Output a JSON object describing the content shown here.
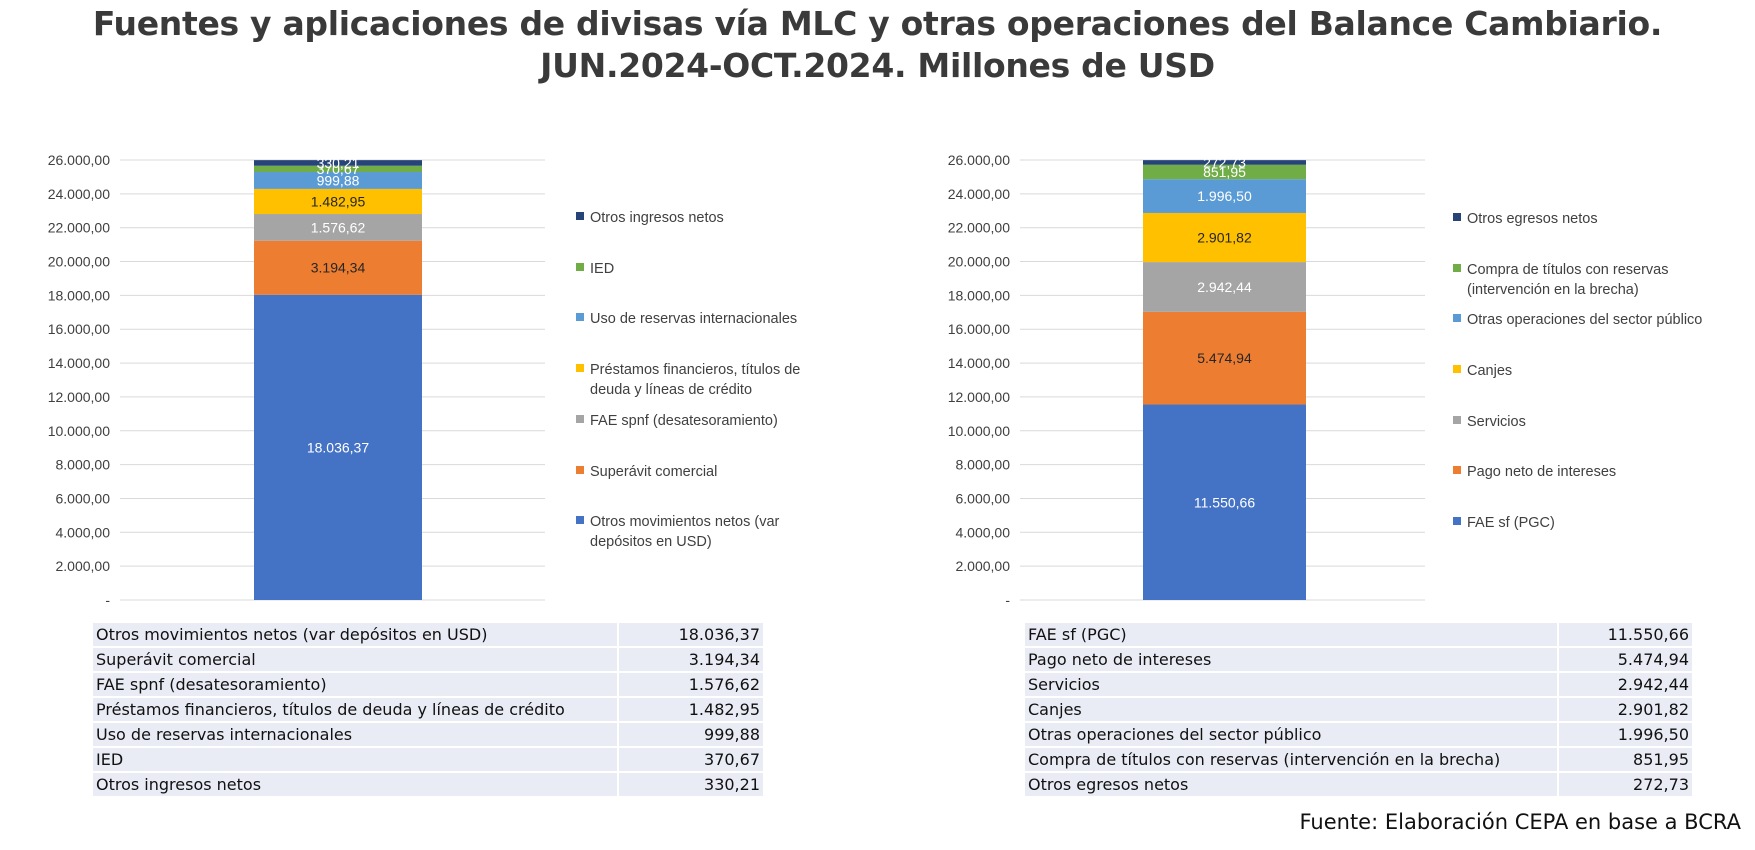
{
  "title": {
    "line1": "Fuentes y aplicaciones de divisas vía MLC y otras operaciones del Balance Cambiario.",
    "line2": "JUN.2024-OCT.2024. Millones de USD"
  },
  "source": "Fuente: Elaboración CEPA en base a BCRA",
  "chart_data": [
    {
      "type": "bar",
      "stacked": true,
      "ylim": [
        0,
        26000
      ],
      "y_ticks": [
        "-",
        "2.000,00",
        "4.000,00",
        "6.000,00",
        "8.000,00",
        "10.000,00",
        "12.000,00",
        "14.000,00",
        "16.000,00",
        "18.000,00",
        "20.000,00",
        "22.000,00",
        "24.000,00",
        "26.000,00"
      ],
      "grid": true,
      "legend_position": "right",
      "series": [
        {
          "name": "Otros movimientos netos (var depósitos en USD)",
          "value": 18036.37,
          "label": "18.036,37",
          "color": "#4472c4"
        },
        {
          "name": "Superávit comercial",
          "value": 3194.34,
          "label": "3.194,34",
          "color": "#ed7d31"
        },
        {
          "name": "FAE spnf (desatesoramiento)",
          "value": 1576.62,
          "label": "1.576,62",
          "color": "#a5a5a5"
        },
        {
          "name": "Préstamos financieros, títulos de deuda y líneas de crédito",
          "value": 1482.95,
          "label": "1.482,95",
          "color": "#ffc000"
        },
        {
          "name": "Uso de reservas internacionales",
          "value": 999.88,
          "label": "999,88",
          "color": "#5b9bd5"
        },
        {
          "name": "IED",
          "value": 370.67,
          "label": "370,67",
          "color": "#70ad47"
        },
        {
          "name": "Otros ingresos netos",
          "value": 330.21,
          "label": "330,21",
          "color": "#264478"
        }
      ],
      "legend": [
        {
          "lines": [
            "Otros ingresos netos"
          ],
          "color": "#264478"
        },
        {
          "lines": [
            "IED"
          ],
          "color": "#70ad47"
        },
        {
          "lines": [
            "Uso de reservas internacionales"
          ],
          "color": "#5b9bd5"
        },
        {
          "lines": [
            "Préstamos financieros, títulos de",
            "deuda y líneas de crédito"
          ],
          "color": "#ffc000"
        },
        {
          "lines": [
            "FAE spnf (desatesoramiento)"
          ],
          "color": "#a5a5a5"
        },
        {
          "lines": [
            "Superávit comercial"
          ],
          "color": "#ed7d31"
        },
        {
          "lines": [
            "Otros movimientos netos (var",
            "depósitos en USD)"
          ],
          "color": "#4472c4"
        }
      ]
    },
    {
      "type": "bar",
      "stacked": true,
      "ylim": [
        0,
        26000
      ],
      "y_ticks": [
        "-",
        "2.000,00",
        "4.000,00",
        "6.000,00",
        "8.000,00",
        "10.000,00",
        "12.000,00",
        "14.000,00",
        "16.000,00",
        "18.000,00",
        "20.000,00",
        "22.000,00",
        "24.000,00",
        "26.000,00"
      ],
      "grid": true,
      "legend_position": "right",
      "series": [
        {
          "name": "FAE sf (PGC)",
          "value": 11550.66,
          "label": "11.550,66",
          "color": "#4472c4"
        },
        {
          "name": "Pago neto de intereses",
          "value": 5474.94,
          "label": "5.474,94",
          "color": "#ed7d31"
        },
        {
          "name": "Servicios",
          "value": 2942.44,
          "label": "2.942,44",
          "color": "#a5a5a5"
        },
        {
          "name": "Canjes",
          "value": 2901.82,
          "label": "2.901,82",
          "color": "#ffc000"
        },
        {
          "name": "Otras operaciones del sector público",
          "value": 1996.5,
          "label": "1.996,50",
          "color": "#5b9bd5"
        },
        {
          "name": "Compra de títulos con reservas (intervención en la brecha)",
          "value": 851.95,
          "label": "851,95",
          "color": "#70ad47"
        },
        {
          "name": "Otros egresos netos",
          "value": 272.73,
          "label": "272,73",
          "color": "#264478"
        }
      ],
      "legend": [
        {
          "lines": [
            "Otros egresos netos"
          ],
          "color": "#264478"
        },
        {
          "lines": [
            "Compra de títulos con reservas",
            "(intervención en la brecha)"
          ],
          "color": "#70ad47"
        },
        {
          "lines": [
            "Otras operaciones del sector público"
          ],
          "color": "#5b9bd5"
        },
        {
          "lines": [
            "Canjes"
          ],
          "color": "#ffc000"
        },
        {
          "lines": [
            "Servicios"
          ],
          "color": "#a5a5a5"
        },
        {
          "lines": [
            "Pago neto de intereses"
          ],
          "color": "#ed7d31"
        },
        {
          "lines": [
            "FAE sf (PGC)"
          ],
          "color": "#4472c4"
        }
      ]
    }
  ],
  "tables": {
    "left": [
      {
        "label": "Otros movimientos netos (var depósitos en USD)",
        "value": "18.036,37"
      },
      {
        "label": "Superávit comercial",
        "value": "3.194,34"
      },
      {
        "label": "FAE spnf (desatesoramiento)",
        "value": "1.576,62"
      },
      {
        "label": "Préstamos financieros, títulos de deuda y líneas de crédito",
        "value": "1.482,95"
      },
      {
        "label": "Uso de reservas internacionales",
        "value": "999,88"
      },
      {
        "label": "IED",
        "value": "370,67"
      },
      {
        "label": "Otros ingresos netos",
        "value": "330,21"
      }
    ],
    "right": [
      {
        "label": "FAE sf (PGC)",
        "value": "11.550,66"
      },
      {
        "label": "Pago neto de intereses",
        "value": "5.474,94"
      },
      {
        "label": "Servicios",
        "value": "2.942,44"
      },
      {
        "label": "Canjes",
        "value": "2.901,82"
      },
      {
        "label": "Otras operaciones del sector público",
        "value": "1.996,50"
      },
      {
        "label": "Compra de títulos con reservas (intervención en la brecha)",
        "value": "851,95"
      },
      {
        "label": "Otros egresos netos",
        "value": "272,73"
      }
    ]
  }
}
